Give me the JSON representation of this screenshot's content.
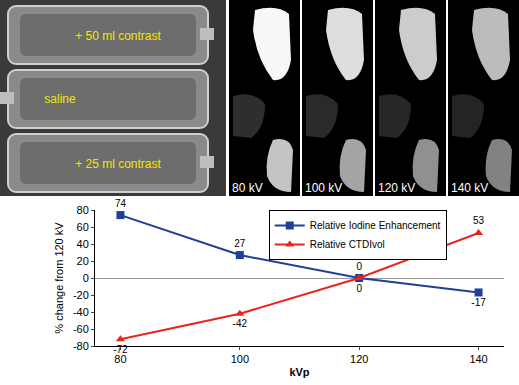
{
  "chart_data": {
    "type": "line",
    "categories": [
      "80",
      "100",
      "120",
      "140"
    ],
    "x_label": "kVp",
    "y_label": "% change from 120 kV",
    "ylim": [
      -80,
      80
    ],
    "yticks": [
      -80,
      -60,
      -40,
      -20,
      0,
      20,
      40,
      60,
      80
    ],
    "grid": false,
    "legend": "upper right",
    "data_labels": true,
    "series": [
      {
        "name": "Relative Iodine Enhancement",
        "color": "#1f3f99",
        "marker": "square",
        "values": [
          74,
          27,
          0,
          -17
        ]
      },
      {
        "name": "Relative CTDIvol",
        "color": "#e8241c",
        "marker": "triangle",
        "values": [
          -72,
          -42,
          0,
          53
        ]
      }
    ]
  },
  "images": {
    "phantom_labels": [
      "+ 50 ml contrast",
      "saline",
      "+ 25 ml contrast"
    ],
    "kv_labels": [
      "80 kV",
      "100 kV",
      "120 kV",
      "140 kV"
    ]
  }
}
